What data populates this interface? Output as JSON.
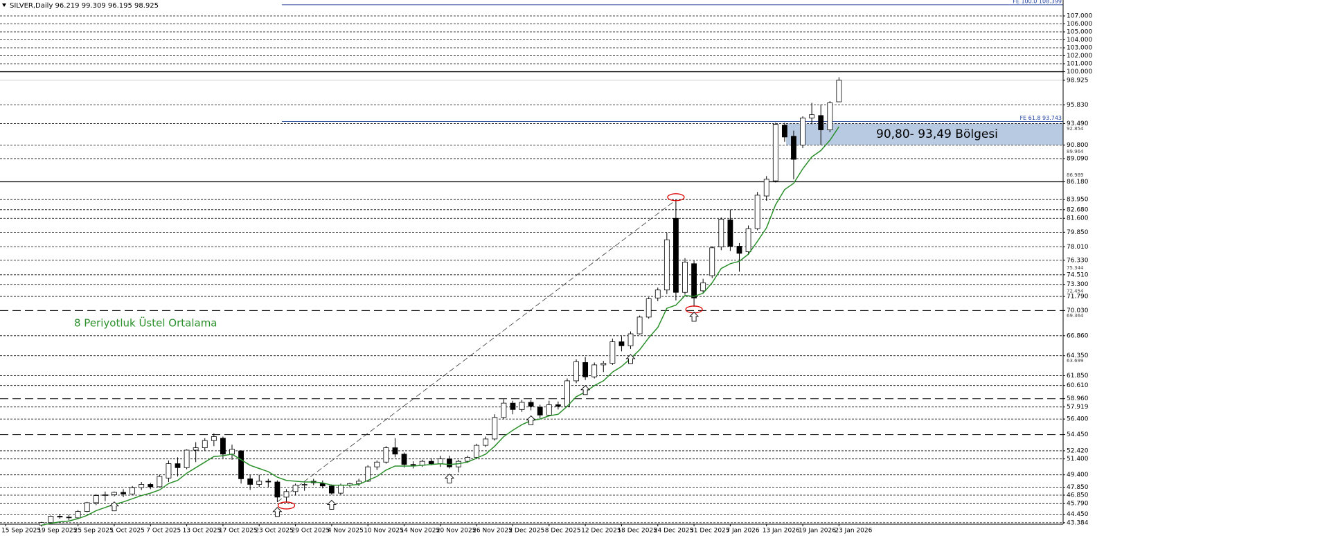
{
  "chart_data": {
    "type": "candlestick",
    "title": "SILVER,Daily  96.219 99.309 96.195 98.925",
    "categories": [
      "15 Sep 2025",
      null,
      null,
      null,
      "19 Sep 2025",
      null,
      null,
      null,
      "25 Sep 2025",
      null,
      null,
      null,
      "1 Oct 2025",
      null,
      null,
      null,
      "7 Oct 2025",
      null,
      null,
      null,
      "13 Oct 2025",
      null,
      null,
      null,
      "17 Oct 2025",
      null,
      null,
      null,
      "23 Oct 2025",
      null,
      null,
      null,
      "29 Oct 2025",
      null,
      null,
      null,
      "4 Nov 2025",
      null,
      null,
      null,
      "10 Nov 2025",
      null,
      null,
      null,
      "14 Nov 2025",
      null,
      null,
      null,
      "20 Nov 2025",
      null,
      null,
      null,
      "26 Nov 2025",
      null,
      null,
      null,
      "2 Dec 2025",
      null,
      null,
      null,
      "8 Dec 2025",
      null,
      null,
      null,
      "12 Dec 2025",
      null,
      null,
      null,
      "18 Dec 2025",
      null,
      null,
      null,
      "24 Dec 2025",
      null,
      null,
      null,
      "31 Dec 2025",
      null,
      null,
      null,
      "7 Jan 2026",
      null,
      null,
      null,
      "13 Jan 2026",
      null,
      null,
      null,
      "19 Jan 2026",
      null,
      null,
      null,
      "23 Jan 2026"
    ],
    "open": [
      null,
      null,
      null,
      null,
      43.1,
      43.4,
      44.2,
      44.1,
      44.0,
      44.8,
      45.9,
      46.8,
      46.9,
      47.2,
      47.0,
      47.8,
      48.2,
      47.9,
      49.0,
      50.8,
      50.3,
      52.5,
      52.8,
      53.7,
      54.0,
      52.0,
      52.4,
      48.9,
      48.2,
      48.6,
      48.5,
      46.6,
      47.3,
      48.1,
      48.6,
      48.3,
      48.0,
      47.1,
      48.1,
      48.3,
      48.6,
      50.4,
      51.0,
      52.8,
      52.0,
      50.7,
      50.6,
      51.1,
      50.8,
      51.4,
      50.4,
      51.1,
      51.6,
      53.1,
      53.9,
      56.6,
      58.4,
      57.6,
      58.5,
      57.9,
      56.9,
      58.2,
      58.0,
      61.2,
      63.5,
      61.7,
      63.2,
      63.4,
      66.1,
      65.6,
      67.1,
      69.2,
      71.6,
      72.6,
      81.6,
      72.3,
      75.9,
      72.5,
      74.4,
      78.0,
      81.4,
      78.1,
      77.4,
      80.3,
      84.4,
      86.3,
      93.3,
      91.9,
      90.8,
      94.2,
      94.5,
      92.7,
      96.219
    ],
    "high": [
      null,
      null,
      null,
      null,
      43.5,
      44.3,
      44.5,
      44.4,
      45.0,
      46.0,
      47.0,
      47.3,
      47.3,
      47.6,
      48.0,
      48.5,
      48.4,
      49.4,
      51.2,
      51.6,
      52.6,
      53.5,
      54.0,
      54.6,
      54.2,
      53.2,
      52.5,
      49.4,
      49.4,
      48.9,
      48.7,
      47.6,
      48.3,
      48.4,
      48.9,
      48.7,
      48.2,
      48.3,
      48.4,
      48.9,
      50.6,
      51.2,
      53.0,
      54.0,
      52.2,
      51.1,
      51.3,
      51.5,
      51.8,
      51.8,
      51.3,
      51.8,
      53.3,
      54.2,
      57.0,
      58.9,
      58.7,
      58.8,
      58.8,
      58.2,
      58.7,
      58.6,
      61.5,
      63.9,
      64.2,
      63.5,
      63.7,
      66.5,
      66.8,
      67.4,
      69.4,
      71.7,
      72.9,
      79.8,
      83.9,
      76.6,
      76.3,
      74.0,
      78.1,
      81.7,
      82.7,
      78.5,
      80.7,
      84.9,
      86.9,
      93.6,
      93.6,
      92.6,
      94.4,
      96.1,
      95.9,
      96.3,
      99.309
    ],
    "low": [
      null,
      null,
      null,
      null,
      42.9,
      43.2,
      43.9,
      43.7,
      43.9,
      44.7,
      45.6,
      46.1,
      46.7,
      46.6,
      46.9,
      47.5,
      47.6,
      47.8,
      48.5,
      49.2,
      50.1,
      51.0,
      52.4,
      53.0,
      51.5,
      51.3,
      48.3,
      47.5,
      47.9,
      47.8,
      46.0,
      45.9,
      46.8,
      47.4,
      48.1,
      47.7,
      46.9,
      46.9,
      47.8,
      48.0,
      48.5,
      50.0,
      50.8,
      51.6,
      50.3,
      50.2,
      50.4,
      50.6,
      50.4,
      50.2,
      49.7,
      50.9,
      51.4,
      52.9,
      53.7,
      56.4,
      57.0,
      57.3,
      57.5,
      56.5,
      56.8,
      57.6,
      57.9,
      60.9,
      61.3,
      61.5,
      62.3,
      63.2,
      64.9,
      65.2,
      67.0,
      69.0,
      71.2,
      72.1,
      71.3,
      72.0,
      70.5,
      72.2,
      74.1,
      77.6,
      77.5,
      74.9,
      77.0,
      80.1,
      83.8,
      86.1,
      91.2,
      86.5,
      90.4,
      93.4,
      90.8,
      92.4,
      96.195
    ],
    "close": [
      null,
      null,
      null,
      null,
      43.4,
      44.2,
      44.1,
      44.0,
      44.8,
      45.9,
      46.8,
      46.9,
      47.2,
      47.0,
      47.8,
      48.2,
      47.9,
      49.2,
      50.8,
      50.3,
      52.5,
      52.8,
      53.7,
      54.2,
      52.0,
      52.6,
      48.9,
      48.2,
      48.6,
      48.5,
      46.6,
      47.3,
      48.1,
      48.2,
      48.4,
      48.0,
      47.1,
      48.1,
      48.3,
      48.6,
      50.4,
      51.0,
      52.8,
      52.0,
      50.7,
      50.6,
      51.1,
      50.8,
      51.4,
      50.4,
      51.1,
      51.6,
      53.1,
      53.9,
      56.6,
      58.4,
      57.6,
      58.5,
      58.0,
      56.9,
      58.2,
      58.0,
      61.2,
      63.6,
      61.7,
      63.2,
      63.4,
      66.1,
      65.6,
      67.1,
      69.2,
      71.5,
      72.6,
      78.9,
      72.3,
      76.1,
      71.6,
      73.5,
      77.9,
      81.5,
      78.1,
      77.2,
      80.3,
      84.5,
      86.5,
      93.4,
      91.8,
      89.0,
      94.2,
      94.6,
      92.7,
      96.1,
      98.925
    ],
    "ema": {
      "name": "8 Periyotluk Üstel Ortalama",
      "color": "#2a8f2a",
      "values": [
        null,
        null,
        null,
        null,
        43.1,
        43.3,
        43.5,
        43.6,
        43.9,
        44.3,
        44.9,
        45.3,
        45.7,
        46.0,
        46.4,
        46.8,
        47.1,
        47.5,
        48.3,
        48.7,
        49.6,
        50.3,
        51.0,
        51.7,
        51.8,
        52.0,
        51.3,
        50.6,
        50.2,
        49.8,
        49.1,
        48.7,
        48.6,
        48.5,
        48.5,
        48.4,
        48.1,
        48.1,
        48.1,
        48.2,
        48.7,
        49.2,
        50.0,
        50.5,
        50.5,
        50.5,
        50.6,
        50.7,
        50.8,
        50.7,
        50.8,
        51.0,
        51.5,
        52.0,
        53.0,
        54.2,
        55.0,
        55.7,
        56.2,
        56.4,
        56.8,
        57.0,
        58.0,
        59.2,
        59.8,
        60.6,
        61.2,
        62.3,
        63.0,
        64.0,
        65.1,
        66.6,
        67.9,
        70.3,
        70.7,
        71.9,
        71.8,
        72.2,
        73.5,
        75.3,
        75.9,
        76.2,
        77.1,
        78.7,
        80.4,
        83.3,
        85.2,
        86.0,
        87.8,
        89.3,
        90.1,
        91.4,
        93.1
      ]
    },
    "up_color": "#ffffff",
    "down_color": "#000000",
    "ylim": [
      43.2,
      109.0
    ],
    "yticks": [
      {
        "value": 107,
        "label": "107.000"
      },
      {
        "value": 106,
        "label": "106.000"
      },
      {
        "value": 105,
        "label": "105.000"
      },
      {
        "value": 104,
        "label": "104.000"
      },
      {
        "value": 103,
        "label": "103.000"
      },
      {
        "value": 102,
        "label": "102.000"
      },
      {
        "value": 101,
        "label": "101.000"
      },
      {
        "value": 100,
        "label": "100.000"
      },
      98.925,
      {
        "value": 95.83,
        "label": "95.830"
      },
      {
        "value": 93.49,
        "label": "93.490"
      },
      {
        "value": 90.8,
        "label": "90.800"
      },
      {
        "value": 89.09,
        "label": "89.090"
      },
      {
        "value": 86.18,
        "label": "86.180"
      },
      {
        "value": 83.95,
        "label": "83.950"
      },
      {
        "value": 82.68,
        "label": "82.680"
      },
      {
        "value": 81.6,
        "label": "81.600"
      },
      {
        "value": 79.85,
        "label": "79.850"
      },
      {
        "value": 78.01,
        "label": "78.010"
      },
      {
        "value": 76.33,
        "label": "76.330"
      },
      {
        "value": 74.51,
        "label": "74.510"
      },
      {
        "value": 73.3,
        "label": "73.300"
      },
      {
        "value": 71.79,
        "label": "71.790"
      },
      {
        "value": 70.03,
        "label": "70.030"
      },
      {
        "value": 66.86,
        "label": "66.860"
      },
      {
        "value": 64.35,
        "label": "64.350"
      },
      {
        "value": 61.85,
        "label": "61.850"
      },
      {
        "value": 60.61,
        "label": "60.610"
      },
      {
        "value": 58.96,
        "label": "58.960"
      },
      57.919,
      {
        "value": 56.4,
        "label": "56.400"
      },
      {
        "value": 54.45,
        "label": "54.450"
      },
      {
        "value": 52.42,
        "label": "52.420"
      },
      {
        "value": 51.4,
        "label": "51.400"
      },
      {
        "value": 49.4,
        "label": "49.400"
      },
      {
        "value": 47.85,
        "label": "47.850"
      },
      {
        "value": 46.85,
        "label": "46.850"
      },
      {
        "value": 45.79,
        "label": "45.790"
      },
      {
        "value": 44.45,
        "label": "44.450"
      },
      43.384
    ],
    "minor_yticks": [
      92.854,
      89.964,
      86.989,
      75.344,
      72.454,
      69.364,
      63.699
    ],
    "level_styles": {
      "solid": [
        100,
        86.18
      ],
      "longdash": [
        70.03,
        58.96,
        54.45
      ],
      "gray": [
        98.925
      ]
    },
    "fibo": [
      {
        "label": "FE 100.0 108.399",
        "value": 108.399
      },
      {
        "label": "FE 61.8 93.743",
        "value": 93.743
      }
    ],
    "zone": {
      "label": "90,80- 93,49 Bölgesi",
      "range": [
        90.8,
        93.49
      ],
      "color": "#b0c4de"
    }
  }
}
